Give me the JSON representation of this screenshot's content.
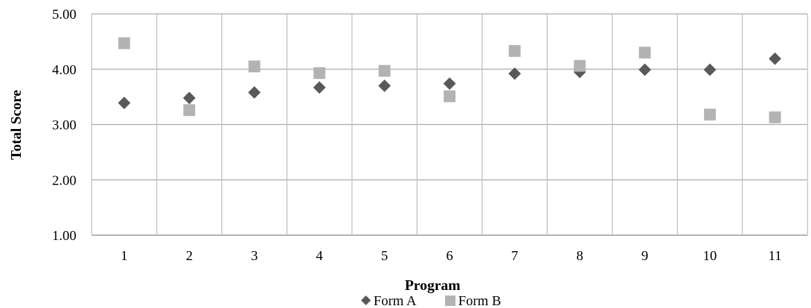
{
  "chart_data": {
    "type": "scatter",
    "title": "",
    "xlabel": "Program",
    "ylabel": "Total Score",
    "categories": [
      "1",
      "2",
      "3",
      "4",
      "5",
      "6",
      "7",
      "8",
      "9",
      "10",
      "11"
    ],
    "ylim": [
      1.0,
      5.0
    ],
    "yticks": [
      "1.00",
      "2.00",
      "3.00",
      "4.00",
      "5.00"
    ],
    "grid": true,
    "legend_position": "bottom",
    "series": [
      {
        "name": "Form A",
        "marker": "diamond",
        "color": "#595959",
        "values": [
          3.39,
          3.48,
          3.58,
          3.67,
          3.7,
          3.74,
          3.92,
          3.95,
          3.99,
          3.99,
          4.19
        ]
      },
      {
        "name": "Form B",
        "marker": "square",
        "color": "#b3b3b3",
        "values": [
          4.47,
          3.26,
          4.05,
          3.93,
          3.97,
          3.51,
          4.33,
          4.06,
          4.3,
          3.18,
          3.13
        ]
      }
    ]
  }
}
